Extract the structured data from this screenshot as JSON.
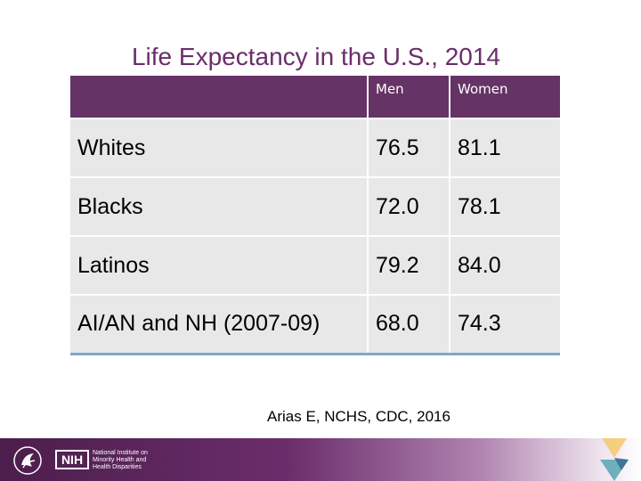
{
  "title": "Life Expectancy in the U.S., 2014",
  "table": {
    "headers": [
      "",
      "Men",
      "Women"
    ],
    "rows": [
      {
        "group": "Whites",
        "men": "76.5",
        "women": "81.1"
      },
      {
        "group": "Blacks",
        "men": "72.0",
        "women": "78.1"
      },
      {
        "group": "Latinos",
        "men": "79.2",
        "women": "84.0"
      },
      {
        "group": "AI/AN and NH (2007-09)",
        "men": "68.0",
        "women": "74.3"
      }
    ]
  },
  "source": "Arias E, NCHS, CDC, 2016",
  "footer": {
    "nih_abbrev": "NIH",
    "nih_text": "National Institute on Minority Health and Health Disparities"
  },
  "colors": {
    "header_bg": "#663366",
    "row_bg": "#e8e8e8",
    "title": "#6b2d6b"
  }
}
